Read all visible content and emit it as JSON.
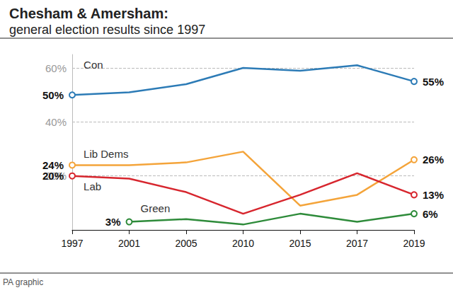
{
  "chart_data": {
    "type": "line",
    "title": "Chesham & Amersham:",
    "subtitle": "general election results since 1997",
    "annotations": [
      "PA graphic"
    ],
    "categories": [
      "1997",
      "2001",
      "2005",
      "2010",
      "2015",
      "2017",
      "2019"
    ],
    "series": [
      {
        "name": "Con",
        "color": "#2c7bb6",
        "values": [
          50,
          51,
          54,
          60,
          59,
          61,
          55
        ],
        "value_labels": [
          "50%",
          null,
          null,
          null,
          null,
          null,
          "55%"
        ]
      },
      {
        "name": "Lib Dems",
        "color": "#f4a43a",
        "values": [
          24,
          24,
          25,
          29,
          9,
          13,
          26
        ],
        "value_labels": [
          "24%",
          null,
          null,
          null,
          null,
          null,
          "26%"
        ]
      },
      {
        "name": "Lab",
        "color": "#d7262e",
        "values": [
          20,
          19,
          14,
          6,
          13,
          21,
          13
        ],
        "value_labels": [
          "20%",
          null,
          null,
          null,
          null,
          null,
          "13%"
        ]
      },
      {
        "name": "Green",
        "color": "#2e8b3a",
        "values": [
          null,
          3,
          4,
          2,
          6,
          3,
          6
        ],
        "value_labels": [
          null,
          "3%",
          null,
          null,
          null,
          null,
          "6%"
        ]
      }
    ],
    "ylim": [
      0,
      65
    ],
    "yticks": [
      {
        "value": 20,
        "label": "20%"
      },
      {
        "value": 40,
        "label": "40%"
      },
      {
        "value": 60,
        "label": "60%"
      }
    ],
    "grid": true,
    "data_labels": true,
    "marker": "circle"
  }
}
